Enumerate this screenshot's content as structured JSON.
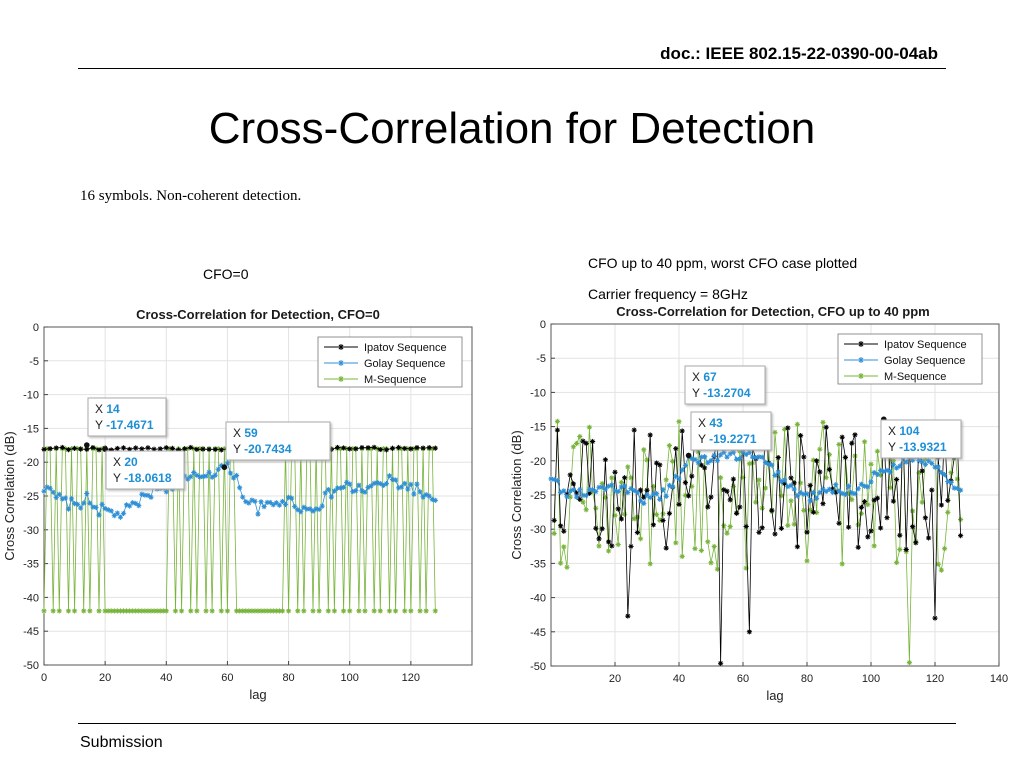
{
  "header": {
    "doc_id": "doc.: IEEE 802.15-22-0390-00-04ab",
    "title": "Cross-Correlation for Detection",
    "subtitle": "16 symbols. Non-coherent detection."
  },
  "notes": {
    "left_caption": "CFO=0",
    "right_line1": "CFO up to 40 ppm, worst CFO case plotted",
    "right_line2": "Carrier frequency = 8GHz"
  },
  "footer": {
    "label": "Submission"
  },
  "colors": {
    "ipatov": "#000000",
    "golay": "#2f8fd6",
    "mseq": "#77b43a"
  },
  "chart_data": [
    {
      "type": "line",
      "title": "Cross-Correlation for Detection, CFO=0",
      "xlabel": "lag",
      "ylabel": "Cross Correlation (dB)",
      "xlim": [
        0,
        140
      ],
      "ylim": [
        -50,
        0
      ],
      "xticks": [
        0,
        20,
        40,
        60,
        80,
        100,
        120
      ],
      "yticks": [
        0,
        -5,
        -10,
        -15,
        -20,
        -25,
        -30,
        -35,
        -40,
        -45,
        -50
      ],
      "grid": true,
      "legend_position": "top-right",
      "series": [
        {
          "name": "Ipatov Sequence",
          "color": "#000000",
          "x_range": [
            0,
            128
          ],
          "values": "flat at approx. -17.9 dB for lags 0-128"
        },
        {
          "name": "Golay Sequence",
          "color": "#2f8fd6",
          "x": [
            0,
            5,
            10,
            14,
            18,
            20,
            24,
            28,
            32,
            36,
            40,
            44,
            48,
            52,
            56,
            59,
            62,
            66,
            70,
            74,
            78,
            82,
            86,
            90,
            94,
            98,
            102,
            106,
            110,
            114,
            118,
            122,
            126,
            128
          ],
          "y": [
            -24,
            -25.5,
            -26.5,
            -25.5,
            -27,
            -27.2,
            -27.8,
            -27,
            -25.5,
            -24,
            -23.5,
            -23,
            -22.5,
            -21.8,
            -21.3,
            -20.7,
            -21.5,
            -25.5,
            -26.8,
            -26.5,
            -25.5,
            -26,
            -27.2,
            -26.2,
            -24.5,
            -23.5,
            -24,
            -24,
            -23.2,
            -22.8,
            -23.5,
            -24,
            -25.5,
            -26.5
          ]
        },
        {
          "name": "M-Sequence",
          "color": "#77b43a",
          "x_range": [
            0,
            128
          ],
          "values": "alternates between approx. -18 dB and -42 dB"
        }
      ],
      "annotations": [
        {
          "x": 14,
          "y": -17.4671,
          "x_label": "14",
          "y_label": "-17.4671"
        },
        {
          "x": 20,
          "y": -18.0618,
          "x_label": "20",
          "y_label": "-18.0618"
        },
        {
          "x": 59,
          "y": -20.7434,
          "x_label": "59",
          "y_label": "-20.7434"
        }
      ]
    },
    {
      "type": "line",
      "title": "Cross-Correlation for Detection, CFO up to 40 ppm",
      "xlabel": "lag",
      "ylabel": "Cross Correlation (dB)",
      "xlim": [
        0,
        140
      ],
      "ylim": [
        -50,
        0
      ],
      "xticks": [
        20,
        40,
        60,
        80,
        100,
        120,
        140
      ],
      "yticks": [
        0,
        -5,
        -10,
        -15,
        -20,
        -25,
        -30,
        -35,
        -40,
        -45,
        -50
      ],
      "grid": true,
      "legend_position": "top-right",
      "series": [
        {
          "name": "Ipatov Sequence",
          "color": "#000000",
          "x_range": [
            0,
            128
          ],
          "values": "fluctuating mostly between -15 and -35 dB, deep dips to about -50 dB near lag 53 and -45 near lag 62"
        },
        {
          "name": "Golay Sequence",
          "color": "#2f8fd6",
          "x": [
            0,
            4,
            8,
            12,
            16,
            20,
            24,
            28,
            32,
            36,
            40,
            43,
            46,
            50,
            54,
            58,
            62,
            66,
            70,
            74,
            78,
            82,
            86,
            90,
            94,
            98,
            102,
            104,
            108,
            112,
            116,
            120,
            124,
            128
          ],
          "y": [
            -22,
            -24.5,
            -25,
            -24.5,
            -24,
            -24,
            -24.5,
            -25.5,
            -25.5,
            -24.5,
            -22,
            -19.9,
            -19.8,
            -19.8,
            -19.4,
            -19.2,
            -19.3,
            -20,
            -21.5,
            -23.5,
            -25,
            -25.3,
            -24.5,
            -24,
            -24.5,
            -23.5,
            -22,
            -21.5,
            -20.5,
            -19.5,
            -19.8,
            -20.5,
            -22.5,
            -24
          ]
        },
        {
          "name": "M-Sequence",
          "color": "#77b43a",
          "x_range": [
            0,
            128
          ],
          "values": "fluctuating mostly between -15 and -37 dB, minimum about -49.5 dB near lag 112"
        }
      ],
      "annotations": [
        {
          "x": 67,
          "y": -13.2704,
          "x_label": "67",
          "y_label": "-13.2704"
        },
        {
          "x": 43,
          "y": -19.2271,
          "x_label": "43",
          "y_label": "-19.2271"
        },
        {
          "x": 104,
          "y": -13.9321,
          "x_label": "104",
          "y_label": "-13.9321"
        }
      ]
    }
  ]
}
